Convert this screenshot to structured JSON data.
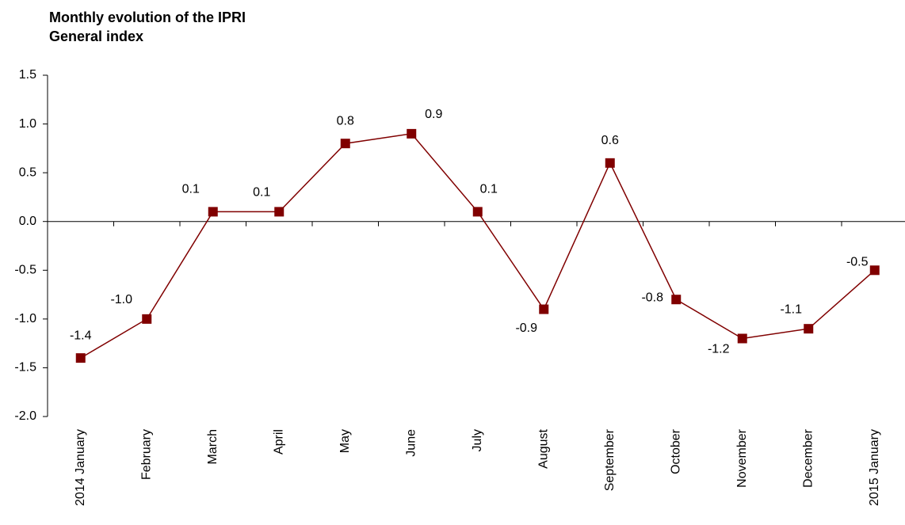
{
  "chart_data": {
    "type": "line",
    "title": "Monthly evolution of the IPRI",
    "subtitle": "General index",
    "categories": [
      "2014 January",
      "February",
      "March",
      "April",
      "May",
      "June",
      "July",
      "August",
      "September",
      "October",
      "November",
      "December",
      "2015 January"
    ],
    "series": [
      {
        "name": "IPRI",
        "color": "#800000",
        "values": [
          -1.4,
          -1.0,
          0.1,
          0.1,
          0.8,
          0.9,
          0.1,
          -0.9,
          0.6,
          -0.8,
          -1.2,
          -1.1,
          -0.5
        ],
        "value_labels": [
          "-1.4",
          "-1.0",
          "0.1",
          "0.1",
          "0.8",
          "0.9",
          "0.1",
          "-0.9",
          "0.6",
          "-0.8",
          "-1.2",
          "-1.1",
          "-0.5"
        ]
      }
    ],
    "ylim": [
      -2.0,
      1.5
    ],
    "yticks": [
      {
        "value": -2.0,
        "label": "-2.0"
      },
      -1.5,
      {
        "value": -1.0,
        "label": "-1.0"
      },
      -0.5,
      {
        "value": 0.0,
        "label": "0.0"
      },
      0.5,
      {
        "value": 1.0,
        "label": "1.0"
      },
      1.5
    ],
    "grid": false
  }
}
